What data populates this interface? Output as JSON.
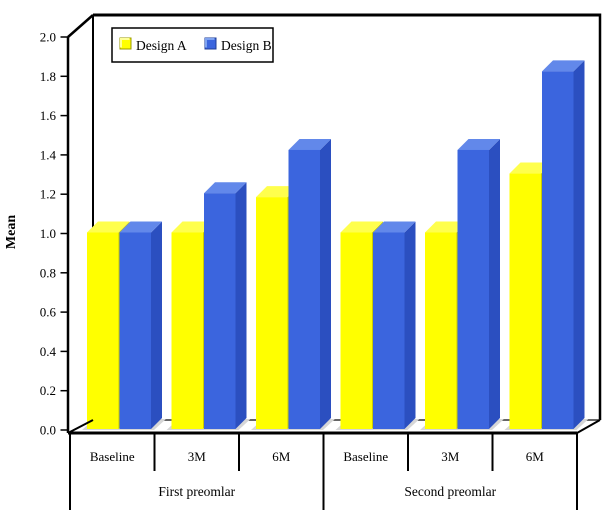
{
  "chart_data": {
    "type": "bar",
    "effect": "3d",
    "title": "",
    "ylabel": "Mean",
    "xlabel": "",
    "ylim": [
      0.0,
      2.0
    ],
    "ytick_step": 0.2,
    "ytick_labels": [
      "0.0",
      "0.2",
      "0.4",
      "0.6",
      "0.8",
      "1.0",
      "1.2",
      "1.4",
      "1.6",
      "1.8",
      "2.0"
    ],
    "grid": false,
    "legend_position": "top-left-inside",
    "categories": [
      "Baseline",
      "3M",
      "6M",
      "Baseline",
      "3M",
      "6M"
    ],
    "category_groups": [
      {
        "label": "First preomlar",
        "span": 3
      },
      {
        "label": "Second preomlar",
        "span": 3
      }
    ],
    "series": [
      {
        "name": "Design A",
        "values": [
          1.0,
          1.0,
          1.18,
          1.0,
          1.0,
          1.3
        ],
        "color": "#FFFF00",
        "top_color": "#FFFF4D",
        "side_color": "#C9C900"
      },
      {
        "name": "Design B",
        "values": [
          1.0,
          1.2,
          1.42,
          1.0,
          1.42,
          1.82
        ],
        "color": "#3B65DE",
        "top_color": "#6288EA",
        "side_color": "#2B4FC0"
      }
    ],
    "shadow_color": "#D6D6D6"
  }
}
